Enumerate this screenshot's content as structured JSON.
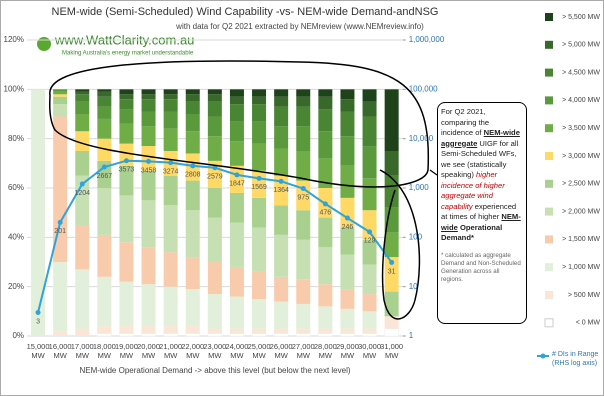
{
  "chart_data": {
    "type": "stacked_bar",
    "title": "NEM-wide (Semi-Scheduled) Wind Capability -vs- NEM-wide Demand-andNSG",
    "subtitle": "with data for Q2 2021 extracted by NEMreview (www.NEMreview.info)",
    "logo": "www.WattClarity.com.au",
    "logo_tagline": "Making Australia's energy market understandable",
    "x_label": "NEM-wide Operational Demand -> above this level (but below the next level)",
    "categories": [
      "15,000 MW",
      "16,000 MW",
      "17,000 MW",
      "18,000 MW",
      "19,000 MW",
      "20,000 MW",
      "21,000 MW",
      "22,000 MW",
      "23,000 MW",
      "24,000 MW",
      "25,000 MW",
      "26,000 MW",
      "27,000 MW",
      "28,000 MW",
      "29,000 MW",
      "30,000 MW",
      "31,000 MW"
    ],
    "ylim": [
      0,
      120
    ],
    "yticks": [
      {
        "value": 0,
        "label": "0%"
      },
      {
        "value": 20,
        "label": "20%"
      },
      {
        "value": 40,
        "label": "40%"
      },
      {
        "value": 60,
        "label": "60%"
      },
      {
        "value": 80,
        "label": "80%"
      },
      {
        "value": 100,
        "label": "100%"
      },
      {
        "value": 120,
        "label": "120%"
      }
    ],
    "y2lim": [
      1,
      1000000
    ],
    "y2log": true,
    "y2ticks": [
      1,
      10,
      100,
      {
        "value": 1000,
        "label": "1,000"
      },
      {
        "value": 10000,
        "label": "10,000"
      },
      {
        "value": 100000,
        "label": "100,000"
      },
      {
        "value": 1000000,
        "label": "1,000,000"
      }
    ],
    "grid": true,
    "series": [
      {
        "name": "< 0 MW",
        "color": "#ffffff",
        "values": [
          0,
          0,
          0,
          1,
          1,
          1,
          1,
          1,
          1,
          1,
          1,
          1,
          1,
          1,
          1,
          1,
          3
        ]
      },
      {
        "name": "> 500 MW",
        "color": "#fbe5d6",
        "values": [
          0,
          2,
          3,
          3,
          3,
          3,
          3,
          3,
          2,
          2,
          2,
          2,
          2,
          2,
          2,
          2,
          5
        ]
      },
      {
        "name": "> 1,000 MW",
        "color": "#e2efda",
        "values": [
          100,
          28,
          24,
          20,
          18,
          17,
          16,
          15,
          14,
          13,
          12,
          11,
          10,
          9,
          8,
          7,
          0
        ]
      },
      {
        "name": "> 1,500 MW",
        "color": "#f8cbad",
        "values": [
          0,
          59,
          18,
          17,
          16,
          15,
          14,
          13,
          13,
          12,
          11,
          10,
          10,
          9,
          8,
          7,
          0
        ]
      },
      {
        "name": "> 2,000 MW",
        "color": "#c6e0b4",
        "values": [
          0,
          5,
          20,
          19,
          19,
          19,
          19,
          19,
          18,
          18,
          18,
          17,
          16,
          15,
          14,
          12,
          0
        ]
      },
      {
        "name": "> 2,500 MW",
        "color": "#a9d08e",
        "values": [
          0,
          3,
          10,
          11,
          12,
          12,
          12,
          12,
          12,
          12,
          12,
          12,
          12,
          12,
          11,
          10,
          10
        ]
      },
      {
        "name": "> 3,000 MW",
        "color": "#ffd966",
        "values": [
          0,
          1,
          8,
          9,
          9,
          10,
          10,
          11,
          11,
          11,
          11,
          12,
          12,
          12,
          12,
          12,
          14
        ]
      },
      {
        "name": "> 3,500 MW",
        "color": "#70ad47",
        "values": [
          0,
          1,
          7,
          8,
          8,
          8,
          9,
          9,
          10,
          10,
          11,
          11,
          12,
          12,
          13,
          13,
          10
        ]
      },
      {
        "name": "> 4,000 MW",
        "color": "#5b9a3c",
        "values": [
          0,
          1,
          5,
          5,
          6,
          6,
          7,
          7,
          8,
          8,
          9,
          9,
          10,
          11,
          12,
          13,
          10
        ]
      },
      {
        "name": "> 4,500 MW",
        "color": "#4a8534",
        "values": [
          0,
          0,
          3,
          4,
          4,
          5,
          5,
          5,
          6,
          7,
          7,
          8,
          8,
          9,
          10,
          12,
          13
        ]
      },
      {
        "name": "> 5,000 MW",
        "color": "#38692a",
        "values": [
          0,
          0,
          1,
          2,
          2,
          2,
          2,
          3,
          3,
          3,
          3,
          4,
          4,
          5,
          5,
          6,
          10
        ]
      },
      {
        "name": "> 5,500 MW",
        "color": "#1e421a",
        "values": [
          0,
          0,
          1,
          1,
          2,
          2,
          2,
          2,
          2,
          3,
          3,
          3,
          3,
          3,
          4,
          5,
          25
        ]
      },
      {
        "name": "# DIs in Range (RHS log axis)",
        "color": "#2ea3dc",
        "axis": "y2",
        "values": [
          3,
          201,
          1204,
          2667,
          3573,
          3458,
          3274,
          2808,
          2579,
          1847,
          1569,
          1364,
          975,
          476,
          246,
          129,
          31
        ]
      }
    ],
    "annotation": {
      "runs": [
        "For Q2 2021, comparing the incidence of ",
        "NEM-wide aggregate",
        " UIGF for all Semi-Scheduled WFs, we see (statistically speaking) ",
        "higher incidence of higher aggregate wind capability",
        " experienced at times of higher ",
        "NEM-wide",
        " Operational Demand*"
      ],
      "footnote": "* calculated as aggregate Demand and Non-Scheduled Generation across all regions."
    }
  }
}
